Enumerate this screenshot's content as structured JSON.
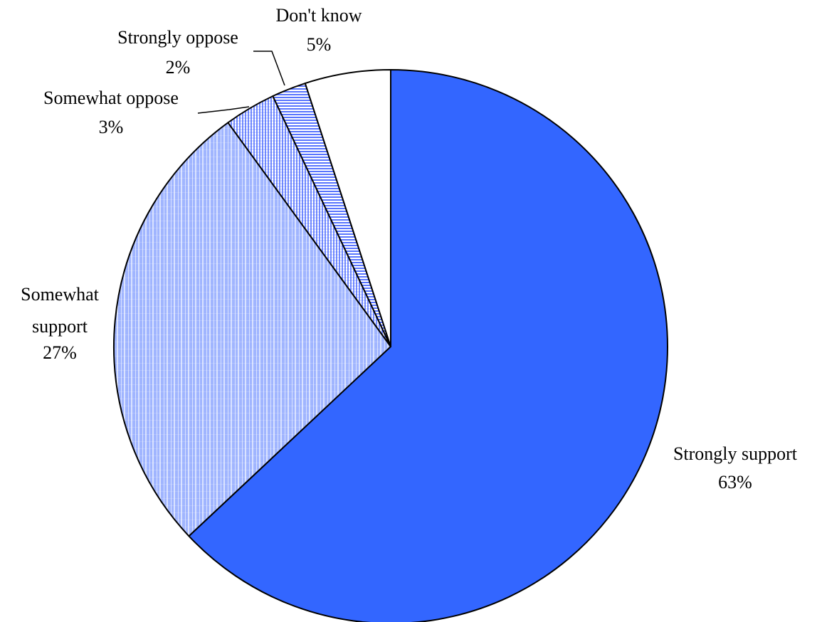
{
  "chart_data": {
    "type": "pie",
    "title": "",
    "slices": [
      {
        "label": "Strongly support",
        "value_label": "63%",
        "value": 63,
        "color": "#3366ff",
        "pattern": "solid"
      },
      {
        "label": "Somewhat support",
        "value_label": "27%",
        "value": 27,
        "color": "#8fa8ff",
        "pattern": "grid"
      },
      {
        "label": "Somewhat oppose",
        "value_label": "3%",
        "value": 3,
        "color": "#6f8cff",
        "pattern": "vertical-lines"
      },
      {
        "label": "Strongly oppose",
        "value_label": "2%",
        "value": 2,
        "color": "#4f70ff",
        "pattern": "horizontal-lines"
      },
      {
        "label": "Don't know",
        "value_label": "5%",
        "value": 5,
        "color": "#ffffff",
        "pattern": "solid"
      }
    ]
  }
}
